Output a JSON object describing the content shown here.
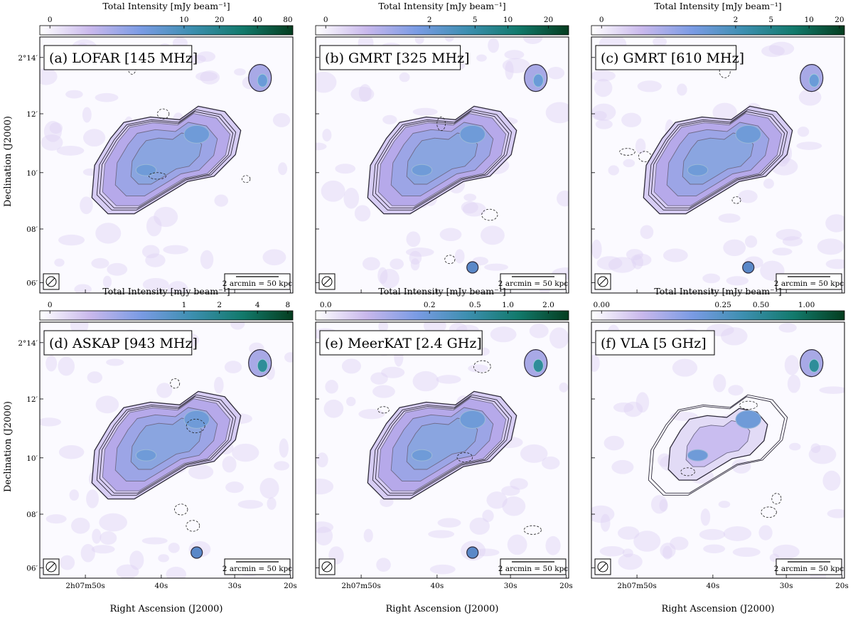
{
  "figure": {
    "colorbar_title": "Total Intensity [mJy beam⁻¹]",
    "scale_bar_label": "2 arcmin = 50 kpc",
    "ylabel": "Declination (J2000)",
    "xlabel": "Right Ascension (J2000)",
    "dec_ticks": [
      "2°14′",
      "12′",
      "10′",
      "08′",
      "06′"
    ],
    "ra_ticks": [
      "2h07m50s",
      "40s",
      "30s",
      "20s"
    ],
    "colormap": [
      "#ffffff",
      "#c9b8ec",
      "#7a9be4",
      "#3d8fb0",
      "#127a6c",
      "#043d1f"
    ],
    "contour_color": "#2e2a3a"
  },
  "panels": [
    {
      "title": "(a) LOFAR [145 MHz]",
      "cbar_ticks": [
        "0",
        "10",
        "20",
        "40",
        "80"
      ],
      "cbar_pos": [
        0.04,
        0.57,
        0.71,
        0.86,
        0.98
      ]
    },
    {
      "title": "(b) GMRT [325 MHz]",
      "cbar_ticks": [
        "0",
        "2",
        "5",
        "10",
        "20"
      ],
      "cbar_pos": [
        0.04,
        0.45,
        0.63,
        0.76,
        0.92
      ]
    },
    {
      "title": "(c) GMRT [610 MHz]",
      "cbar_ticks": [
        "0",
        "2",
        "5",
        "10",
        "20"
      ],
      "cbar_pos": [
        0.04,
        0.57,
        0.71,
        0.86,
        0.98
      ]
    },
    {
      "title": "(d) ASKAP [943 MHz]",
      "cbar_ticks": [
        "0",
        "1",
        "2",
        "4",
        "8"
      ],
      "cbar_pos": [
        0.04,
        0.57,
        0.71,
        0.86,
        0.98
      ]
    },
    {
      "title": "(e) MeerKAT [2.4 GHz]",
      "cbar_ticks": [
        "0.0",
        "0.2",
        "0.5",
        "1.0",
        "2.0"
      ],
      "cbar_pos": [
        0.04,
        0.45,
        0.63,
        0.76,
        0.92
      ]
    },
    {
      "title": "(f) VLA [5 GHz]",
      "cbar_ticks": [
        "0.00",
        "0.25",
        "0.50",
        "1.00"
      ],
      "cbar_pos": [
        0.04,
        0.52,
        0.67,
        0.85
      ]
    }
  ]
}
